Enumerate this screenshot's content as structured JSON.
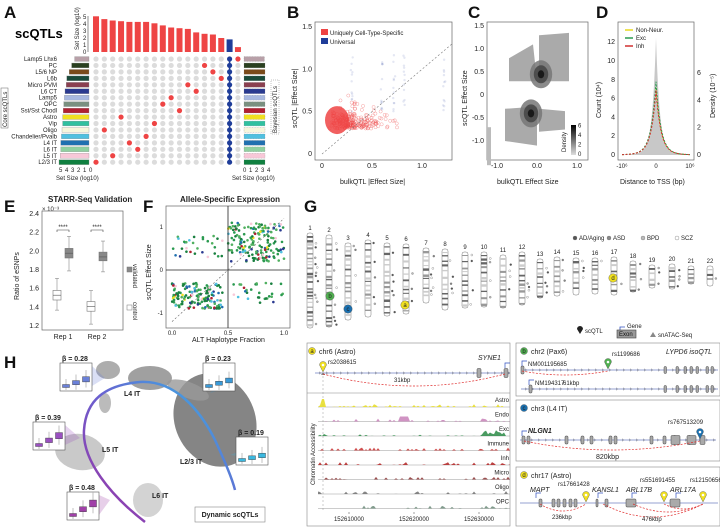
{
  "panels": {
    "A": "A",
    "B": "B",
    "C": "C",
    "D": "D",
    "E": "E",
    "F": "F",
    "G": "G",
    "H": "H"
  },
  "colors": {
    "red": "#ee4444",
    "blue": "#1f3d99",
    "grey_dot": "#dcdcdc"
  },
  "chart_data": [
    {
      "id": "A",
      "type": "bar",
      "title": "scQTLs",
      "ylabel": "Set Size (log10)",
      "y_ticks": [
        "0",
        "1",
        "2",
        "3",
        "4",
        "5"
      ],
      "left_axis_label": "Core scQTLs",
      "right_axis_label": "Bayesian scQTLs",
      "bottom_left_label": "Set Size (log10)",
      "bottom_right_label": "Set Size (log10)",
      "left_ticks": [
        "5",
        "4",
        "3",
        "2",
        "1",
        "0"
      ],
      "right_ticks": [
        "0",
        "1",
        "2",
        "3",
        "4"
      ],
      "rows": [
        {
          "name": "Lamp5 Lhx6",
          "color": "#b8a0a8",
          "core": 2.4,
          "bayes": 3.4
        },
        {
          "name": "PC",
          "color": "#2a4020",
          "core": 2.9,
          "bayes": 3.5
        },
        {
          "name": "L5/6 NP",
          "color": "#7a4a1a",
          "core": 3.3,
          "bayes": 3.5
        },
        {
          "name": "L6b",
          "color": "#1a4a3a",
          "core": 3.7,
          "bayes": 3.5
        },
        {
          "name": "Micro PVM",
          "color": "#8a4050",
          "core": 3.8,
          "bayes": 3.5
        },
        {
          "name": "L6 CT",
          "color": "#2a3a90",
          "core": 4.0,
          "bayes": 3.5
        },
        {
          "name": "Lamp5",
          "color": "#a8b8e0",
          "core": 4.1,
          "bayes": 3.5
        },
        {
          "name": "OPC",
          "color": "#7a9080",
          "core": 4.2,
          "bayes": 3.5
        },
        {
          "name": "Sst/Sst Chodl",
          "color": "#b02030",
          "core": 4.3,
          "bayes": 3.5
        },
        {
          "name": "Astro",
          "color": "#f0e020",
          "core": 4.4,
          "bayes": 3.5
        },
        {
          "name": "Vip",
          "color": "#30c0a0",
          "core": 4.4,
          "bayes": 3.5
        },
        {
          "name": "Oligo",
          "color": "#f6f6dc",
          "core": 4.5,
          "bayes": 3.5
        },
        {
          "name": "Chandelier/Pvalb",
          "color": "#50c0e0",
          "core": 4.6,
          "bayes": 3.5
        },
        {
          "name": "L4 IT",
          "color": "#2070b0",
          "core": 4.7,
          "bayes": 3.5
        },
        {
          "name": "L6 IT",
          "color": "#90d0a0",
          "core": 4.7,
          "bayes": 3.5
        },
        {
          "name": "L5 IT",
          "color": "#f8c8d8",
          "core": 4.8,
          "bayes": 3.5
        },
        {
          "name": "L2/3 IT",
          "color": "#108040",
          "core": 5.0,
          "bayes": 3.5
        }
      ],
      "intersections": [
        {
          "row": "L2/3 IT",
          "value": 5.1
        },
        {
          "row": "Oligo",
          "value": 4.7
        },
        {
          "row": "L5 IT",
          "value": 4.5
        },
        {
          "row": "Astro",
          "value": 4.4
        },
        {
          "row": "L4 IT",
          "value": 4.3
        },
        {
          "row": "L6 IT",
          "value": 4.3
        },
        {
          "row": "Chandelier/Pvalb",
          "value": 4.3
        },
        {
          "row": "Vip",
          "value": 4.1
        },
        {
          "row": "OPC",
          "value": 3.8
        },
        {
          "row": "Lamp5",
          "value": 3.5
        },
        {
          "row": "Sst/Sst Chodl",
          "value": 3.4
        },
        {
          "row": "Micro PVM",
          "value": 3.3
        },
        {
          "row": "L6 CT",
          "value": 2.8
        },
        {
          "row": "PC",
          "value": 2.6
        },
        {
          "row": "L5/6 NP",
          "value": 2.5
        },
        {
          "row": "L6b",
          "value": 2.0
        },
        {
          "row": "ALL",
          "value": 1.8,
          "universal": true
        },
        {
          "row": "Lamp5 Lhx6",
          "value": 0.7
        }
      ]
    },
    {
      "id": "B",
      "type": "scatter",
      "xlabel": "bulkQTL |Effect Size|",
      "ylabel": "scQTL |Effect Size|",
      "xlim": [
        0,
        1.35
      ],
      "ylim": [
        0,
        1.55
      ],
      "x_ticks": [
        "0",
        "0.5",
        "1.0"
      ],
      "y_ticks": [
        "0",
        "0.5",
        "1.0",
        "1.5"
      ],
      "legend": [
        {
          "label": "Uniquely Cell-Type-Specific",
          "color": "#ee4444"
        },
        {
          "label": "Universal",
          "color": "#1f3d99"
        }
      ],
      "legend_position": "top-left",
      "diagonal": "y=x dashed"
    },
    {
      "id": "C",
      "type": "heatmap",
      "xlabel": "bulkQTL Effect Size",
      "ylabel": "scQTL Effect Size",
      "xlim": [
        -1.3,
        1.3
      ],
      "ylim": [
        -1.3,
        1.5
      ],
      "x_ticks": [
        "-1.0",
        "0.0",
        "1.0"
      ],
      "y_ticks": [
        "-1.0",
        "-0.5",
        "0",
        "0.5",
        "1.0",
        "1.5"
      ],
      "colorbar": {
        "label": "Density",
        "ticks": [
          "0",
          "2",
          "4",
          "6"
        ]
      },
      "peaks": [
        {
          "x": 0.1,
          "y": 0.45
        },
        {
          "x": -0.15,
          "y": -0.4
        }
      ]
    },
    {
      "id": "D",
      "type": "line",
      "xlabel": "Distance to TSS (bp)",
      "ylabel": "Count (10⁴)",
      "ylabel_right": "Density (10⁻⁵)",
      "x_ticks": [
        "-10⁶",
        "0",
        "10⁶"
      ],
      "y_ticks": [
        "0",
        "2",
        "4",
        "6",
        "8",
        "10",
        "12"
      ],
      "y_ticks_right": [
        "0",
        "2",
        "4",
        "6"
      ],
      "ylim": [
        0,
        13
      ],
      "histogram_peak": 12.2,
      "series": [
        {
          "name": "Non-Neur.",
          "color": "#e8d820",
          "peak": 6.8
        },
        {
          "name": "Exc",
          "color": "#2a9a50",
          "peak": 7.4
        },
        {
          "name": "Inh",
          "color": "#d03030",
          "peak": 6.5
        }
      ],
      "legend_position": "top-left"
    },
    {
      "id": "E",
      "type": "box",
      "title": "STARR-Seq Validation",
      "ylabel": "Ratio of eSNPs",
      "y_scale_note": "× 10⁻³",
      "ylim": [
        1.2,
        2.4
      ],
      "y_ticks": [
        "1.2",
        "1.4",
        "1.6",
        "1.8",
        "2.0",
        "2.2",
        "2.4"
      ],
      "categories": [
        "Rep 1",
        "Rep 2"
      ],
      "significance": [
        "****",
        "****"
      ],
      "series": [
        {
          "name": "validated",
          "color": "#888888",
          "boxes": [
            {
              "min": 1.79,
              "q1": 1.95,
              "median": 1.98,
              "q3": 2.01,
              "max": 2.16
            },
            {
              "min": 1.78,
              "q1": 1.92,
              "median": 1.94,
              "q3": 1.97,
              "max": 2.11
            }
          ]
        },
        {
          "name": "control",
          "color": "#ffffff",
          "boxes": [
            {
              "min": 1.37,
              "q1": 1.5,
              "median": 1.53,
              "q3": 1.56,
              "max": 1.71
            },
            {
              "min": 1.22,
              "q1": 1.38,
              "median": 1.41,
              "q3": 1.44,
              "max": 1.58
            }
          ]
        }
      ]
    },
    {
      "id": "F",
      "type": "scatter",
      "title": "Allele-Specific Expression",
      "xlabel": "ALT Haplotype Fraction",
      "ylabel": "scQTL Effect Size",
      "xlim": [
        -0.05,
        1.02
      ],
      "ylim": [
        -1.4,
        1.5
      ],
      "x_ticks": [
        "0.0",
        "0.5",
        "1.0"
      ],
      "y_ticks": [
        "-1",
        "0",
        "1"
      ]
    },
    {
      "id": "H",
      "type": "box",
      "title": "Dynamic scQTLs",
      "clusters": [
        "L4 IT",
        "L5 IT",
        "L6 IT",
        "L2/3 IT"
      ],
      "insets": [
        {
          "beta": "β = 0.28",
          "color": "#6a80d8"
        },
        {
          "beta": "β = 0.23",
          "color": "#3a9ad8"
        },
        {
          "beta": "β = 0.39",
          "color": "#9a50c0"
        },
        {
          "beta": "β = 0.19",
          "color": "#3ab8e0"
        },
        {
          "beta": "β = 0.48",
          "color": "#a040a8"
        }
      ]
    }
  ],
  "G": {
    "chromosomes": [
      "1",
      "2",
      "3",
      "4",
      "5",
      "6",
      "7",
      "8",
      "9",
      "10",
      "11",
      "12",
      "13",
      "14",
      "15",
      "16",
      "17",
      "18",
      "19",
      "20",
      "21",
      "22"
    ],
    "legend": [
      {
        "label": "AD/Aging",
        "color": "#555"
      },
      {
        "label": "ASD",
        "color": "#888"
      },
      {
        "label": "BPD",
        "color": "#bbb"
      },
      {
        "label": "SCZ",
        "color": "#fff"
      }
    ],
    "markers": [
      {
        "id": "a",
        "color": "#f0e020"
      },
      {
        "id": "b",
        "color": "#50b050"
      },
      {
        "id": "c",
        "color": "#1a70b0"
      },
      {
        "id": "d",
        "color": "#f0e020"
      }
    ],
    "key": {
      "scqtl": "scQTL",
      "gene": "Gene",
      "exon": "Exon",
      "atac": "snATAC-Seq"
    },
    "a": {
      "title": "chr6 (Astro)",
      "gene": "SYNE1",
      "snp": "rs2038615",
      "dist": "31kbp",
      "ylabel": "Chromatin Accessibility",
      "tracks": [
        {
          "name": "Astro",
          "color": "#e6dc20"
        },
        {
          "name": "Endo",
          "color": "#c880b8"
        },
        {
          "name": "Exc",
          "color": "#2a8a45"
        },
        {
          "name": "Immune",
          "color": "#c83030"
        },
        {
          "name": "Inh",
          "color": "#b02020"
        },
        {
          "name": "Micro",
          "color": "#8a3030"
        },
        {
          "name": "Oligo",
          "color": "#707070"
        },
        {
          "name": "OPC",
          "color": "#6a8a78"
        }
      ],
      "x_ticks": [
        "152610000",
        "152620000",
        "152630000"
      ]
    },
    "b": {
      "title": "chr2 (Pax6)",
      "gene_label": "LYPD6 isoQTL",
      "snp": "rs1199686",
      "iso1": "NM001195685",
      "iso2": "NM194317",
      "dist": "61kbp"
    },
    "c": {
      "title": "chr3 (L4 IT)",
      "gene": "NLGN1",
      "snp": "rs767513209",
      "dist": "820kbp"
    },
    "d": {
      "title": "chr17 (Astro)",
      "genes": [
        "MAPT",
        "KANSL1",
        "ARL17B",
        "ARL17A"
      ],
      "snps": [
        "rs17661428",
        "rs551691455",
        "rs12150656"
      ],
      "dists": [
        "236kbp",
        "476kbp"
      ]
    }
  }
}
